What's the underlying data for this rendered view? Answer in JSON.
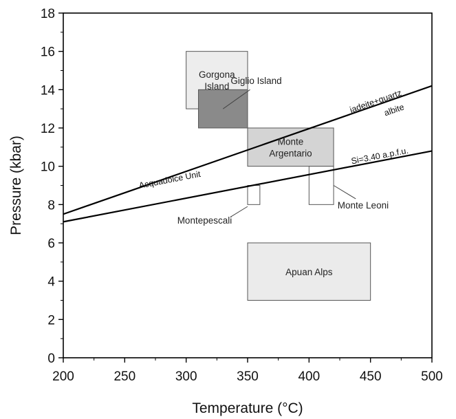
{
  "chart_data": {
    "type": "scatter",
    "title": "",
    "xlabel": "Temperature (°C)",
    "ylabel": "Pressure (kbar)",
    "xlim": [
      200,
      500
    ],
    "ylim": [
      0,
      18
    ],
    "x_ticks": [
      "200",
      "250",
      "300",
      "350",
      "400",
      "450",
      "500"
    ],
    "y_ticks": [
      "0",
      "2",
      "4",
      "6",
      "8",
      "10",
      "12",
      "14",
      "16",
      "18"
    ],
    "x_tick_values": [
      200,
      250,
      300,
      350,
      400,
      450,
      500
    ],
    "y_tick_values": [
      0,
      2,
      4,
      6,
      8,
      10,
      12,
      14,
      16,
      18
    ],
    "grid": false,
    "boxes": [
      {
        "name": "Gorgona Island",
        "lines": [
          "Gorgona",
          "Island"
        ],
        "x": [
          300,
          350
        ],
        "y": [
          13,
          16
        ],
        "fill": "#ededed"
      },
      {
        "name": "Giglio Island",
        "lines": [],
        "x": [
          310,
          350
        ],
        "y": [
          12,
          14
        ],
        "fill": "#8a8a8a"
      },
      {
        "name": "Monte Argentario",
        "lines": [
          "Monte",
          "Argentario"
        ],
        "x": [
          350,
          420
        ],
        "y": [
          10,
          12
        ],
        "fill": "#d4d4d4"
      },
      {
        "name": "Monte Leoni",
        "lines": [],
        "x": [
          400,
          420
        ],
        "y": [
          8,
          10
        ],
        "fill": "#ffffff"
      },
      {
        "name": "Montepescali",
        "lines": [],
        "x": [
          350,
          360
        ],
        "y": [
          8,
          9
        ],
        "fill": "#ffffff"
      },
      {
        "name": "Apuan Alps",
        "lines": [
          "Apuan Alps"
        ],
        "x": [
          350,
          450
        ],
        "y": [
          3,
          6
        ],
        "fill": "#ebebeb"
      }
    ],
    "lines": [
      {
        "name": "jadeite+quartz / albite",
        "x": [
          200,
          500
        ],
        "y": [
          7.5,
          14.2
        ]
      },
      {
        "name": "Si=3.40 a.p.f.u.",
        "x": [
          200,
          500
        ],
        "y": [
          7.1,
          10.8
        ]
      }
    ],
    "line_labels": [
      {
        "text": "jadeite+quartz",
        "x": 455,
        "y": 13.25
      },
      {
        "text": "albite",
        "x": 470,
        "y": 12.8
      },
      {
        "text": "Si=3.40 a.p.f.u.",
        "x": 458,
        "y": 10.4
      },
      {
        "text": "Acquadolce Unit",
        "x": 287,
        "y": 9.15
      }
    ],
    "annotations": [
      {
        "text": "Giglio Island",
        "text_x": 357,
        "text_y": 14.3,
        "from": [
          352,
          14.0
        ],
        "to": [
          330,
          13.0
        ]
      },
      {
        "text": "Monte Leoni",
        "text_x": 444,
        "text_y": 7.8,
        "from": [
          438,
          8.3
        ],
        "to": [
          420,
          9.0
        ]
      },
      {
        "text": "Montepescali",
        "text_x": 315,
        "text_y": 7.0,
        "from": [
          336,
          7.35
        ],
        "to": [
          350,
          7.9
        ]
      }
    ]
  }
}
